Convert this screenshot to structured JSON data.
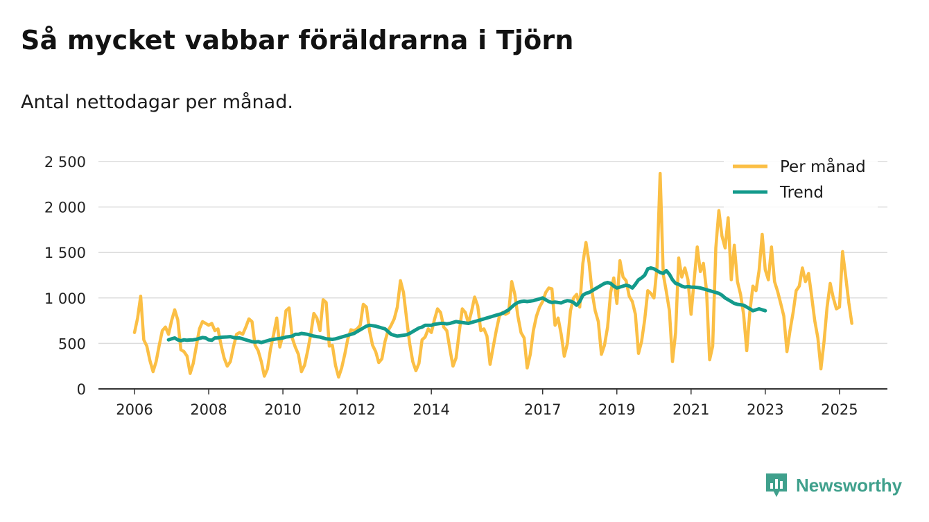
{
  "title": "Så mycket vabbar föräldrarna i Tjörn",
  "subtitle": "Antal nettodagar per månad.",
  "brand": {
    "name": "Newsworthy",
    "icon": "newsworthy-logo-icon"
  },
  "colors": {
    "per_manad": "#fbbf45",
    "trend": "#139a8b",
    "grid": "#dcdcdc",
    "axis": "#333333"
  },
  "chart_data": {
    "type": "line",
    "x_start": "2006-01",
    "x_step": "month",
    "ylim": [
      0,
      2500
    ],
    "yticks": [
      0,
      500,
      1000,
      1500,
      2000,
      2500
    ],
    "ytick_labels": [
      "0",
      "500",
      "1 000",
      "1 500",
      "2 000",
      "2 500"
    ],
    "xtick_labels": [
      {
        "label": "2006",
        "year": 2006
      },
      {
        "label": "2008",
        "year": 2008
      },
      {
        "label": "2010",
        "year": 2010
      },
      {
        "label": "2012",
        "year": 2012
      },
      {
        "label": "2014",
        "year": 2014
      },
      {
        "label": "2017",
        "year": 2017
      },
      {
        "label": "2019",
        "year": 2019
      },
      {
        "label": "2021",
        "year": 2021
      },
      {
        "label": "2023",
        "year": 2023
      },
      {
        "label": "2025",
        "year": 2025
      }
    ],
    "legend": {
      "position": "top-right",
      "entries": [
        "Per månad",
        "Trend"
      ]
    },
    "series": [
      {
        "name": "Per månad",
        "start_index": 0,
        "values": [
          620,
          780,
          1020,
          540,
          470,
          310,
          190,
          300,
          480,
          640,
          680,
          600,
          750,
          870,
          760,
          430,
          410,
          360,
          170,
          280,
          470,
          660,
          740,
          720,
          700,
          720,
          640,
          660,
          480,
          340,
          250,
          300,
          460,
          600,
          620,
          600,
          680,
          770,
          740,
          480,
          420,
          300,
          140,
          220,
          440,
          600,
          780,
          460,
          600,
          860,
          890,
          560,
          460,
          380,
          190,
          260,
          420,
          600,
          830,
          780,
          640,
          980,
          950,
          470,
          480,
          260,
          130,
          230,
          380,
          550,
          650,
          640,
          660,
          700,
          930,
          900,
          640,
          480,
          410,
          290,
          330,
          520,
          640,
          700,
          770,
          900,
          1190,
          1060,
          770,
          500,
          300,
          200,
          280,
          540,
          570,
          660,
          620,
          760,
          880,
          840,
          680,
          640,
          440,
          250,
          340,
          620,
          880,
          840,
          720,
          850,
          1010,
          910,
          640,
          660,
          580,
          270,
          460,
          640,
          800,
          840,
          820,
          840,
          1180,
          1040,
          800,
          620,
          560,
          230,
          380,
          640,
          800,
          900,
          960,
          1060,
          1110,
          1100,
          700,
          780,
          600,
          360,
          500,
          860,
          1000,
          1040,
          900,
          1380,
          1610,
          1390,
          1060,
          860,
          740,
          380,
          480,
          680,
          1060,
          1220,
          940,
          1410,
          1230,
          1190,
          1020,
          960,
          820,
          390,
          520,
          760,
          1080,
          1050,
          1000,
          1340,
          2370,
          1260,
          1070,
          860,
          300,
          620,
          1440,
          1230,
          1330,
          1200,
          820,
          1200,
          1560,
          1290,
          1380,
          1080,
          320,
          470,
          1550,
          1960,
          1680,
          1550,
          1880,
          1200,
          1580,
          1180,
          1040,
          820,
          420,
          840,
          1130,
          1080,
          1300,
          1700,
          1310,
          1200,
          1560,
          1180,
          1070,
          940,
          800,
          410,
          640,
          840,
          1080,
          1130,
          1330,
          1180,
          1270,
          1020,
          750,
          560,
          220,
          520,
          900,
          1160,
          1000,
          880,
          900,
          1510,
          1240,
          950,
          720
        ]
      },
      {
        "name": "Trend",
        "start_index": 11,
        "values": [
          540,
          550,
          560,
          540,
          530,
          540,
          535,
          538,
          540,
          545,
          555,
          565,
          560,
          540,
          535,
          560,
          562,
          568,
          570,
          572,
          575,
          565,
          560,
          560,
          550,
          540,
          530,
          520,
          515,
          520,
          510,
          520,
          530,
          540,
          545,
          550,
          555,
          560,
          570,
          575,
          580,
          600,
          600,
          610,
          605,
          600,
          590,
          580,
          575,
          570,
          560,
          550,
          548,
          545,
          550,
          560,
          570,
          580,
          590,
          600,
          610,
          630,
          650,
          670,
          690,
          700,
          695,
          690,
          680,
          670,
          660,
          630,
          600,
          590,
          580,
          585,
          590,
          595,
          610,
          630,
          650,
          670,
          680,
          700,
          700,
          700,
          710,
          715,
          720,
          720,
          715,
          720,
          730,
          740,
          735,
          730,
          725,
          720,
          730,
          740,
          750,
          760,
          770,
          780,
          790,
          800,
          810,
          820,
          830,
          850,
          870,
          900,
          930,
          950,
          960,
          965,
          960,
          965,
          970,
          980,
          990,
          1000,
          980,
          960,
          950,
          955,
          950,
          945,
          960,
          970,
          965,
          950,
          920,
          960,
          1030,
          1050,
          1060,
          1080,
          1100,
          1120,
          1140,
          1160,
          1170,
          1160,
          1130,
          1110,
          1120,
          1130,
          1140,
          1130,
          1110,
          1150,
          1200,
          1220,
          1250,
          1320,
          1330,
          1320,
          1300,
          1280,
          1270,
          1300,
          1260,
          1200,
          1160,
          1150,
          1130,
          1120,
          1125,
          1120,
          1118,
          1115,
          1110,
          1100,
          1090,
          1080,
          1070,
          1060,
          1050,
          1030,
          1000,
          980,
          960,
          940,
          930,
          925,
          920,
          900,
          880,
          860,
          870,
          880,
          870,
          860
        ]
      }
    ]
  }
}
